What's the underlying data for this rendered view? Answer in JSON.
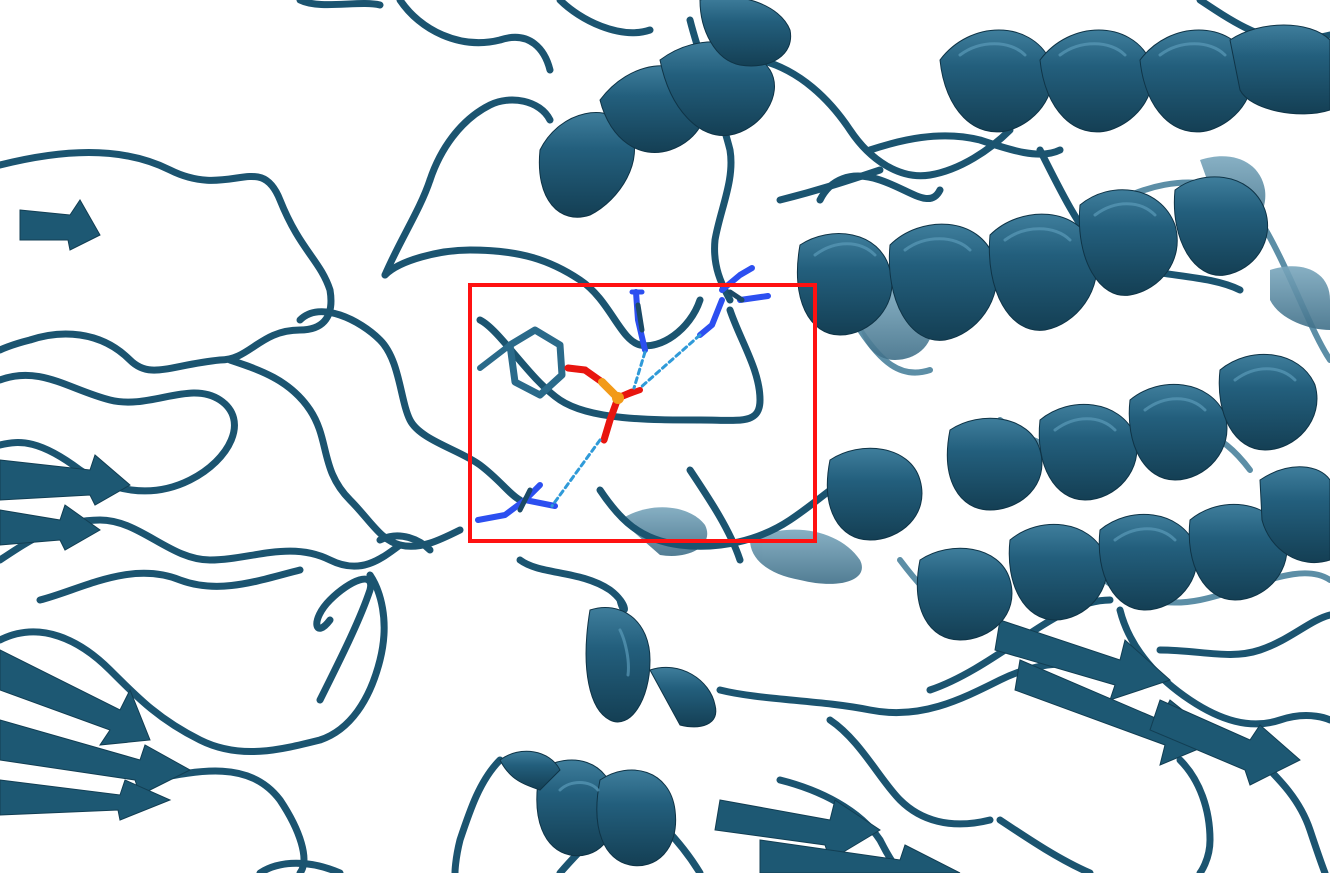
{
  "scene": {
    "type": "protein-cartoon",
    "background_color": "#ffffff",
    "colors": {
      "ribbon": "#1c5671",
      "ribbon_light": "#4f8aa6",
      "ribbon_far": "#5f93ab",
      "nitrogen": "#2c4ff0",
      "oxygen": "#f01818",
      "phosphorus": "#f29a18",
      "hbond": "#2f9ad8",
      "highlight_box": "#ff1111"
    },
    "highlight": {
      "shape": "rectangle",
      "contents": [
        "phosphotyrosine",
        "arginine-side-chains",
        "hydrogen-bonds"
      ]
    }
  }
}
